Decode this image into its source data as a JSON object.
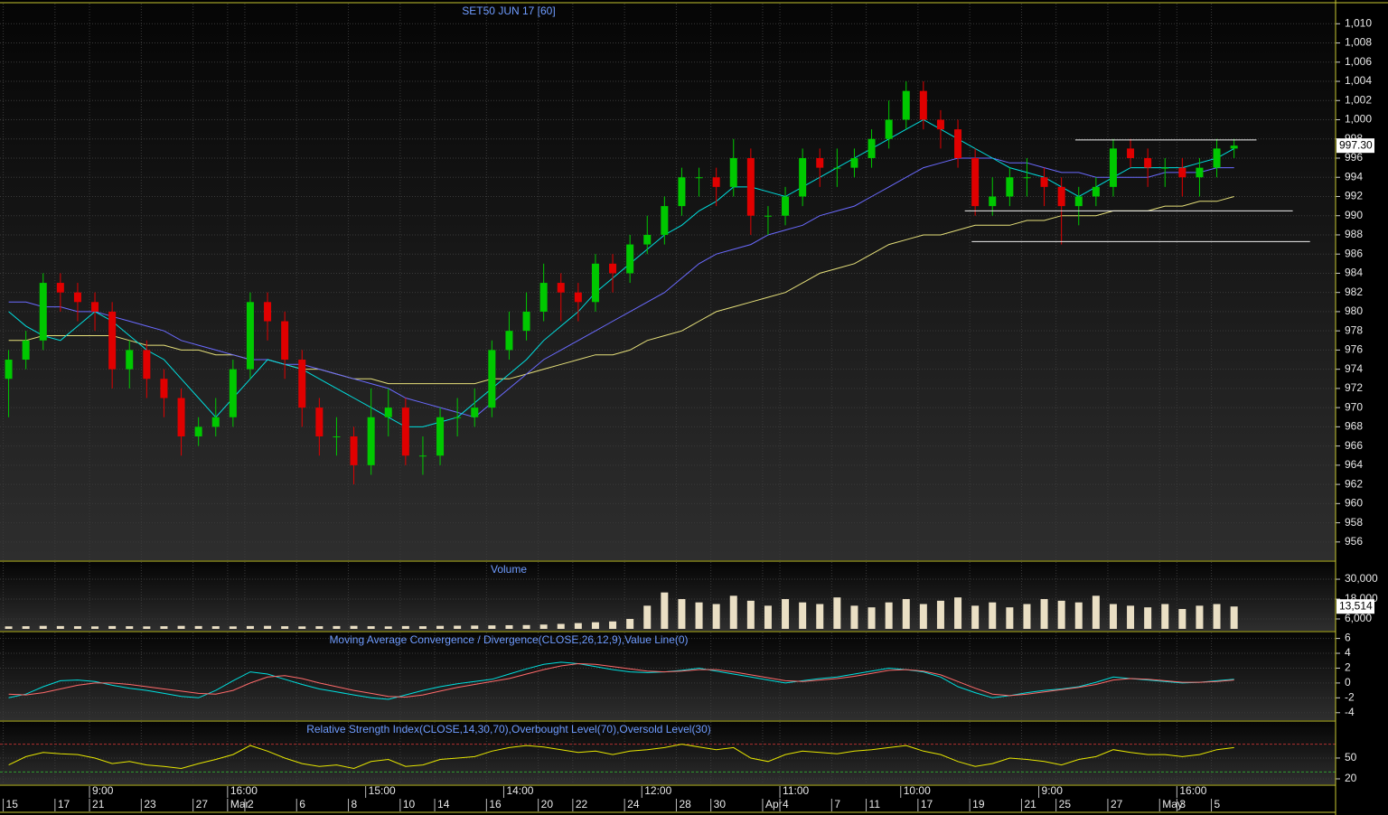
{
  "chart_data": [
    {
      "type": "candlestick",
      "title": "SET50 JUN 17   [60]",
      "grid": true,
      "up_color": "#00c800",
      "down_color": "#e00000",
      "categories": [
        "15",
        null,
        null,
        "17",
        null,
        "21",
        null,
        null,
        "23",
        null,
        null,
        "27",
        null,
        "Mar",
        "2",
        null,
        null,
        "6",
        null,
        null,
        "8",
        null,
        null,
        "10",
        null,
        "14",
        null,
        null,
        "16",
        null,
        null,
        "20",
        null,
        "22",
        null,
        null,
        "24",
        null,
        null,
        "28",
        null,
        "30",
        null,
        null,
        "Apr",
        "4",
        null,
        null,
        "7",
        null,
        "11",
        null,
        null,
        "17",
        null,
        null,
        "19",
        null,
        null,
        "21",
        null,
        "25",
        null,
        null,
        "27",
        null,
        null,
        "May",
        "3",
        null,
        "5",
        null
      ],
      "time_labels": [
        null,
        null,
        null,
        null,
        null,
        "9:00",
        null,
        null,
        null,
        null,
        null,
        null,
        null,
        "16:00",
        null,
        null,
        null,
        null,
        null,
        null,
        null,
        "15:00",
        null,
        null,
        null,
        null,
        null,
        null,
        null,
        "14:00",
        null,
        null,
        null,
        null,
        null,
        null,
        null,
        "12:00",
        null,
        null,
        null,
        null,
        null,
        null,
        null,
        "11:00",
        null,
        null,
        null,
        null,
        null,
        null,
        "10:00",
        null,
        null,
        null,
        null,
        null,
        null,
        null,
        "9:00",
        null,
        null,
        null,
        null,
        null,
        null,
        null,
        "16:00",
        null,
        null,
        null
      ],
      "open": [
        973,
        975,
        977,
        983,
        982,
        981,
        980,
        974,
        976,
        973,
        971,
        967,
        968,
        969,
        974,
        981,
        979,
        975,
        970,
        967,
        967,
        964,
        969,
        970,
        965,
        965,
        969,
        969,
        970,
        976,
        978,
        980,
        983,
        982,
        981,
        985,
        984,
        987,
        988,
        991,
        994,
        994,
        993,
        996,
        990,
        990,
        992,
        996,
        995,
        995,
        996,
        998,
        1000,
        1003,
        1000,
        999,
        996,
        991,
        992,
        994,
        994,
        993,
        991,
        992,
        993,
        997,
        996,
        995,
        995,
        994,
        995,
        997
      ],
      "high": [
        976,
        978,
        984,
        984,
        983,
        982,
        981,
        977,
        977,
        974,
        972,
        969,
        971,
        975,
        982,
        982,
        980,
        976,
        971,
        969,
        968,
        972,
        972,
        971,
        967,
        970,
        971,
        972,
        977,
        980,
        982,
        985,
        984,
        983,
        986,
        986,
        988,
        990,
        992,
        995,
        995,
        995,
        998,
        997,
        991,
        993,
        997,
        997,
        997,
        997,
        999,
        1002,
        1004,
        1004,
        1001,
        1000,
        997,
        994,
        995,
        996,
        995,
        994,
        993,
        994,
        998,
        998,
        997,
        996,
        996,
        996,
        998,
        998
      ],
      "low": [
        969,
        974,
        976,
        980,
        979,
        978,
        972,
        972,
        971,
        969,
        965,
        966,
        967,
        968,
        973,
        977,
        973,
        968,
        965,
        965,
        962,
        963,
        967,
        964,
        963,
        964,
        967,
        968,
        969,
        975,
        977,
        979,
        979,
        979,
        980,
        982,
        983,
        986,
        987,
        990,
        992,
        991,
        992,
        988,
        988,
        989,
        991,
        993,
        993,
        994,
        995,
        997,
        999,
        999,
        997,
        995,
        990,
        990,
        991,
        992,
        991,
        987,
        989,
        991,
        992,
        995,
        993,
        993,
        992,
        992,
        994,
        996
      ],
      "close": [
        975,
        977,
        983,
        982,
        981,
        980,
        974,
        976,
        973,
        971,
        967,
        968,
        969,
        974,
        981,
        979,
        975,
        970,
        967,
        967,
        964,
        969,
        970,
        965,
        965,
        969,
        969,
        970,
        976,
        978,
        980,
        983,
        982,
        981,
        985,
        984,
        987,
        988,
        991,
        994,
        994,
        993,
        996,
        990,
        990,
        992,
        996,
        995,
        995,
        996,
        998,
        1000,
        1003,
        1000,
        999,
        996,
        991,
        992,
        994,
        994,
        993,
        991,
        992,
        993,
        997,
        996,
        995,
        995,
        994,
        995,
        997,
        997.3
      ],
      "last_tag": {
        "value": 997.3,
        "label": "997.30"
      },
      "series": [
        {
          "color": "#e6e07a",
          "values": [
            977,
            977,
            977.5,
            977.5,
            977.5,
            977.5,
            977.5,
            977,
            976.5,
            976.5,
            976,
            976,
            975.5,
            975.5,
            975,
            975,
            974.5,
            974,
            974,
            973.5,
            973,
            973,
            972.5,
            972.5,
            972.5,
            972.5,
            972.5,
            972.5,
            973,
            973,
            973.5,
            974,
            974.5,
            975,
            975.5,
            975.5,
            976,
            977,
            977.5,
            978,
            979,
            980,
            980.5,
            981,
            981.5,
            982,
            983,
            984,
            984.5,
            985,
            986,
            987,
            987.5,
            988,
            988,
            988.5,
            989,
            989,
            989,
            989.5,
            989.5,
            990,
            990,
            990,
            990.5,
            990.5,
            990.5,
            991,
            991,
            991.5,
            991.5,
            992
          ]
        },
        {
          "color": "#6a6aff",
          "values": [
            981,
            981,
            980.5,
            980.5,
            980,
            980,
            979.5,
            979,
            978.5,
            978,
            977,
            976.5,
            976,
            975.5,
            975,
            975,
            974.5,
            974.5,
            974,
            973.5,
            973,
            972.5,
            972,
            971,
            970.5,
            970,
            969.5,
            969,
            970.5,
            972,
            973.5,
            975,
            976,
            977,
            978,
            979,
            980,
            981,
            982,
            983.5,
            985,
            986,
            986.5,
            987,
            988,
            988.5,
            989,
            990,
            990.5,
            991,
            992,
            993,
            994,
            995,
            995.5,
            996,
            996,
            996,
            995.5,
            995.5,
            995,
            994.5,
            994.5,
            994,
            994,
            994,
            994,
            994.5,
            994.5,
            994.5,
            995,
            995
          ]
        },
        {
          "color": "#00dede",
          "values": [
            980,
            978.5,
            977.5,
            977,
            978.5,
            980,
            979,
            977.5,
            976,
            975,
            973,
            971,
            969,
            971,
            973,
            975,
            974.5,
            974,
            973,
            972,
            971,
            970,
            969,
            968,
            968,
            968.5,
            969,
            970.5,
            972,
            973.5,
            975,
            977,
            978.5,
            980,
            982,
            983.5,
            985,
            986.5,
            988,
            989,
            990.5,
            991.5,
            993,
            993,
            992.5,
            992,
            993,
            994,
            995,
            996,
            997,
            998,
            999,
            1000,
            999,
            998,
            997,
            996,
            995,
            994.5,
            994,
            993,
            992,
            993,
            994,
            995,
            995,
            995,
            995,
            995.5,
            996,
            997
          ]
        }
      ],
      "trend_lines": [
        {
          "value": 997.9,
          "x": [
            62.3,
            72.8
          ]
        },
        {
          "value": 990.5,
          "x": [
            55.9,
            74.9
          ]
        },
        {
          "value": 987.3,
          "x": [
            56.3,
            75.9
          ]
        }
      ],
      "ylim": [
        954.1,
        1012.1
      ],
      "yticks": [
        956,
        958,
        960,
        962,
        964,
        966,
        968,
        970,
        972,
        974,
        976,
        978,
        980,
        982,
        984,
        986,
        988,
        990,
        992,
        994,
        996,
        998,
        {
          "value": 1000,
          "label": "1,000"
        },
        {
          "value": 1002,
          "label": "1,002"
        },
        {
          "value": 1004,
          "label": "1,004"
        },
        {
          "value": 1006,
          "label": "1,006"
        },
        {
          "value": 1008,
          "label": "1,008"
        },
        {
          "value": 1010,
          "label": "1,010"
        }
      ]
    },
    {
      "type": "bar",
      "title": "Volume",
      "grid": true,
      "color": "#eadfc4",
      "values": [
        1500,
        1600,
        1800,
        1700,
        1600,
        1500,
        1700,
        1600,
        1500,
        1600,
        1800,
        1700,
        1600,
        1500,
        1700,
        1800,
        1600,
        1500,
        1600,
        1700,
        1800,
        1600,
        1500,
        1700,
        1600,
        1800,
        1900,
        2000,
        2100,
        2200,
        2300,
        2600,
        3000,
        3500,
        4000,
        4500,
        6000,
        14000,
        22000,
        18000,
        16000,
        15000,
        20000,
        17000,
        14000,
        18000,
        16000,
        15000,
        19000,
        14000,
        13000,
        16000,
        18000,
        15000,
        17000,
        19000,
        14000,
        16000,
        13000,
        15000,
        18000,
        17000,
        16000,
        20000,
        15000,
        14000,
        13000,
        15000,
        12000,
        14000,
        15000,
        13514
      ],
      "last_tag": {
        "value": 13514,
        "label": "13,514"
      },
      "ylim": [
        0,
        40400
      ],
      "yticks": [
        {
          "value": 6000,
          "label": "6,000"
        },
        {
          "value": 18000,
          "label": "18,000"
        },
        {
          "value": 30000,
          "label": "30,000"
        }
      ]
    },
    {
      "type": "line",
      "title": "Moving Average Convergence / Divergence(CLOSE,26,12,9),Value Line(0)",
      "grid": true,
      "series": [
        {
          "color": "#00dede",
          "values": [
            -2,
            -1.5,
            -0.5,
            0.3,
            0.4,
            0.2,
            -0.3,
            -0.7,
            -1,
            -1.4,
            -1.8,
            -2,
            -1,
            0.3,
            1.5,
            1.2,
            0.5,
            -0.2,
            -0.8,
            -1.2,
            -1.6,
            -2,
            -2.2,
            -1.6,
            -1,
            -0.5,
            -0.1,
            0.2,
            0.5,
            1.2,
            1.9,
            2.5,
            2.8,
            2.6,
            2.2,
            1.8,
            1.5,
            1.4,
            1.5,
            1.7,
            2,
            1.6,
            1.2,
            0.8,
            0.4,
            0,
            0.3,
            0.6,
            0.8,
            1.2,
            1.6,
            2,
            1.8,
            1.5,
            0.8,
            -0.5,
            -1.3,
            -2,
            -1.7,
            -1.3,
            -1,
            -0.8,
            -0.5,
            0.1,
            0.8,
            0.6,
            0.4,
            0.2,
            0,
            0.1,
            0.3,
            0.5
          ]
        },
        {
          "color": "#ff6a6a",
          "values": [
            -1.5,
            -1.6,
            -1.3,
            -0.8,
            -0.3,
            0,
            0,
            -0.2,
            -0.5,
            -0.8,
            -1.1,
            -1.4,
            -1.5,
            -1,
            0,
            0.8,
            1,
            0.6,
            0,
            -0.5,
            -1,
            -1.4,
            -1.8,
            -1.9,
            -1.6,
            -1.1,
            -0.6,
            -0.2,
            0.2,
            0.6,
            1.2,
            1.8,
            2.3,
            2.6,
            2.5,
            2.2,
            1.9,
            1.6,
            1.5,
            1.6,
            1.8,
            1.8,
            1.5,
            1.1,
            0.7,
            0.3,
            0.2,
            0.4,
            0.6,
            0.9,
            1.3,
            1.7,
            1.8,
            1.6,
            1.1,
            0.2,
            -0.7,
            -1.5,
            -1.7,
            -1.5,
            -1.2,
            -0.9,
            -0.6,
            -0.2,
            0.4,
            0.6,
            0.5,
            0.3,
            0.1,
            0.1,
            0.2,
            0.4
          ]
        }
      ],
      "ylim": [
        -5,
        6.8
      ],
      "yticks": [
        -4,
        -2,
        0,
        2,
        4,
        6
      ]
    },
    {
      "type": "line",
      "title": "Relative Strength Index(CLOSE,14,30,70),Overbought Level(70),Oversold Level(30)",
      "grid": true,
      "series": [
        {
          "color": "#e6e600",
          "values": [
            40,
            52,
            58,
            56,
            55,
            50,
            42,
            45,
            40,
            38,
            35,
            42,
            48,
            55,
            68,
            60,
            50,
            42,
            38,
            40,
            35,
            45,
            48,
            38,
            40,
            48,
            50,
            52,
            60,
            65,
            68,
            66,
            62,
            58,
            60,
            55,
            60,
            62,
            65,
            70,
            66,
            62,
            65,
            50,
            45,
            55,
            60,
            58,
            56,
            60,
            62,
            65,
            68,
            60,
            55,
            45,
            38,
            42,
            50,
            48,
            45,
            40,
            48,
            52,
            62,
            58,
            55,
            55,
            52,
            55,
            62,
            65
          ]
        }
      ],
      "levels": [
        {
          "value": 70,
          "color": "#b03030"
        },
        {
          "value": 30,
          "color": "#2f9a2f"
        }
      ],
      "ylim": [
        12.2,
        102
      ],
      "yticks": [
        20,
        50
      ]
    }
  ]
}
